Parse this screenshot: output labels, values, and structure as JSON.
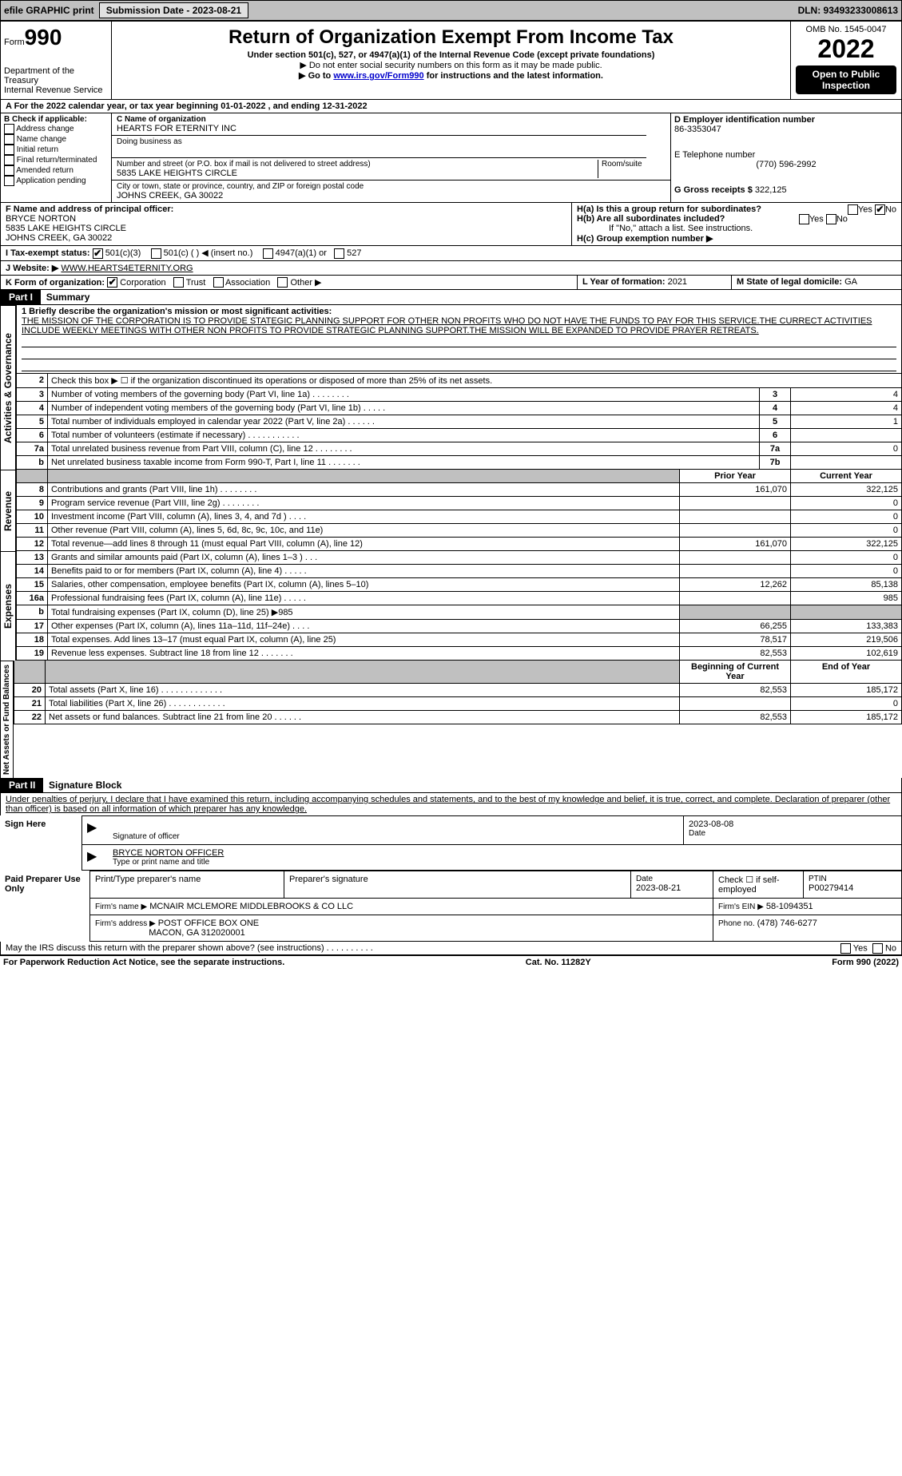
{
  "topbar": {
    "efile": "efile GRAPHIC print",
    "submission_label": "Submission Date - 2023-08-21",
    "dln_label": "DLN: 93493233008613"
  },
  "header": {
    "form_prefix": "Form",
    "form_number": "990",
    "dept": "Department of the Treasury",
    "irs": "Internal Revenue Service",
    "title": "Return of Organization Exempt From Income Tax",
    "sub1": "Under section 501(c), 527, or 4947(a)(1) of the Internal Revenue Code (except private foundations)",
    "sub2": "▶ Do not enter social security numbers on this form as it may be made public.",
    "sub3_pre": "▶ Go to ",
    "sub3_link": "www.irs.gov/Form990",
    "sub3_post": " for instructions and the latest information.",
    "omb": "OMB No. 1545-0047",
    "year": "2022",
    "inspect": "Open to Public Inspection"
  },
  "line_a": "A For the 2022 calendar year, or tax year beginning 01-01-2022    , and ending 12-31-2022",
  "section_b": {
    "label": "B Check if applicable:",
    "items": [
      "Address change",
      "Name change",
      "Initial return",
      "Final return/terminated",
      "Amended return",
      "Application pending"
    ]
  },
  "section_c": {
    "name_label": "C Name of organization",
    "name": "HEARTS FOR ETERNITY INC",
    "dba_label": "Doing business as",
    "addr_label": "Number and street (or P.O. box if mail is not delivered to street address)",
    "room_label": "Room/suite",
    "addr": "5835 LAKE HEIGHTS CIRCLE",
    "city_label": "City or town, state or province, country, and ZIP or foreign postal code",
    "city": "JOHNS CREEK, GA  30022"
  },
  "section_d": {
    "label": "D Employer identification number",
    "value": "86-3353047"
  },
  "section_e": {
    "label": "E Telephone number",
    "value": "(770) 596-2992"
  },
  "section_g": {
    "label": "G Gross receipts $",
    "value": "322,125"
  },
  "section_f": {
    "label": "F Name and address of principal officer:",
    "name": "BRYCE NORTON",
    "addr1": "5835 LAKE HEIGHTS CIRCLE",
    "addr2": "JOHNS CREEK, GA  30022"
  },
  "section_h": {
    "ha": "H(a)  Is this a group return for subordinates?",
    "hb": "H(b)  Are all subordinates included?",
    "hb_note": "If \"No,\" attach a list. See instructions.",
    "hc": "H(c)  Group exemption number ▶",
    "yes": "Yes",
    "no": "No"
  },
  "section_i": {
    "label": "I  Tax-exempt status:",
    "opts": [
      "501(c)(3)",
      "501(c) (   ) ◀ (insert no.)",
      "4947(a)(1) or",
      "527"
    ]
  },
  "section_j": {
    "label": "J  Website: ▶",
    "value": "WWW.HEARTS4ETERNITY.ORG"
  },
  "section_k": {
    "label": "K Form of organization:",
    "opts": [
      "Corporation",
      "Trust",
      "Association",
      "Other ▶"
    ]
  },
  "section_l": {
    "label": "L Year of formation:",
    "value": "2021"
  },
  "section_m": {
    "label": "M State of legal domicile:",
    "value": "GA"
  },
  "part1": {
    "tag": "Part I",
    "title": "Summary"
  },
  "mission": {
    "label": "1  Briefly describe the organization's mission or most significant activities:",
    "text": "THE MISSION OF THE CORPORATION IS TO PROVIDE STATEGIC PLANNING SUPPORT FOR OTHER NON PROFITS WHO DO NOT HAVE THE FUNDS TO PAY FOR THIS SERVICE.THE CURRECT ACTIVITIES INCLUDE WEEKLY MEETINGS WITH OTHER NON PROFITS TO PROVIDE STRATEGIC PLANNING SUPPORT.THE MISSION WILL BE EXPANDED TO PROVIDE PRAYER RETREATS."
  },
  "governance_rows": [
    {
      "n": "2",
      "text": "Check this box ▶ ☐ if the organization discontinued its operations or disposed of more than 25% of its net assets.",
      "ref": "",
      "val": ""
    },
    {
      "n": "3",
      "text": "Number of voting members of the governing body (Part VI, line 1a)   .    .    .    .    .    .    .    .",
      "ref": "3",
      "val": "4"
    },
    {
      "n": "4",
      "text": "Number of independent voting members of the governing body (Part VI, line 1b)   .    .    .    .    .",
      "ref": "4",
      "val": "4"
    },
    {
      "n": "5",
      "text": "Total number of individuals employed in calendar year 2022 (Part V, line 2a)   .    .    .    .    .    .",
      "ref": "5",
      "val": "1"
    },
    {
      "n": "6",
      "text": "Total number of volunteers (estimate if necessary)   .    .    .    .    .    .    .    .    .    .    .",
      "ref": "6",
      "val": ""
    },
    {
      "n": "7a",
      "text": "Total unrelated business revenue from Part VIII, column (C), line 12   .    .    .    .    .    .    .    .",
      "ref": "7a",
      "val": "0"
    },
    {
      "n": "b",
      "text": "Net unrelated business taxable income from Form 990-T, Part I, line 11   .    .    .    .    .    .    .",
      "ref": "7b",
      "val": ""
    }
  ],
  "columns": {
    "prior": "Prior Year",
    "current": "Current Year",
    "begin": "Beginning of Current Year",
    "end": "End of Year"
  },
  "revenue_rows": [
    {
      "n": "8",
      "text": "Contributions and grants (Part VIII, line 1h)   .    .    .    .    .    .    .    .",
      "p": "161,070",
      "c": "322,125"
    },
    {
      "n": "9",
      "text": "Program service revenue (Part VIII, line 2g)   .    .    .    .    .    .    .    .",
      "p": "",
      "c": "0"
    },
    {
      "n": "10",
      "text": "Investment income (Part VIII, column (A), lines 3, 4, and 7d )   .    .    .    .",
      "p": "",
      "c": "0"
    },
    {
      "n": "11",
      "text": "Other revenue (Part VIII, column (A), lines 5, 6d, 8c, 9c, 10c, and 11e)",
      "p": "",
      "c": "0"
    },
    {
      "n": "12",
      "text": "Total revenue—add lines 8 through 11 (must equal Part VIII, column (A), line 12)",
      "p": "161,070",
      "c": "322,125"
    }
  ],
  "expense_rows": [
    {
      "n": "13",
      "text": "Grants and similar amounts paid (Part IX, column (A), lines 1–3 )   .    .    .",
      "p": "",
      "c": "0"
    },
    {
      "n": "14",
      "text": "Benefits paid to or for members (Part IX, column (A), line 4)   .    .    .    .    .",
      "p": "",
      "c": "0"
    },
    {
      "n": "15",
      "text": "Salaries, other compensation, employee benefits (Part IX, column (A), lines 5–10)",
      "p": "12,262",
      "c": "85,138"
    },
    {
      "n": "16a",
      "text": "Professional fundraising fees (Part IX, column (A), line 11e)   .    .    .    .    .",
      "p": "",
      "c": "985"
    },
    {
      "n": "b",
      "text": "Total fundraising expenses (Part IX, column (D), line 25) ▶985",
      "p": "shaded",
      "c": "shaded"
    },
    {
      "n": "17",
      "text": "Other expenses (Part IX, column (A), lines 11a–11d, 11f–24e)   .    .    .    .",
      "p": "66,255",
      "c": "133,383"
    },
    {
      "n": "18",
      "text": "Total expenses. Add lines 13–17 (must equal Part IX, column (A), line 25)",
      "p": "78,517",
      "c": "219,506"
    },
    {
      "n": "19",
      "text": "Revenue less expenses. Subtract line 18 from line 12   .    .    .    .    .    .    .",
      "p": "82,553",
      "c": "102,619"
    }
  ],
  "netassets_rows": [
    {
      "n": "20",
      "text": "Total assets (Part X, line 16)   .    .    .    .    .    .    .    .    .    .    .    .    .",
      "p": "82,553",
      "c": "185,172"
    },
    {
      "n": "21",
      "text": "Total liabilities (Part X, line 26)   .    .    .    .    .    .    .    .    .    .    .    .",
      "p": "",
      "c": "0"
    },
    {
      "n": "22",
      "text": "Net assets or fund balances. Subtract line 21 from line 20   .    .    .    .    .    .",
      "p": "82,553",
      "c": "185,172"
    }
  ],
  "side_labels": {
    "gov": "Activities & Governance",
    "rev": "Revenue",
    "exp": "Expenses",
    "net": "Net Assets or Fund Balances"
  },
  "part2": {
    "tag": "Part II",
    "title": "Signature Block"
  },
  "perjury": "Under penalties of perjury, I declare that I have examined this return, including accompanying schedules and statements, and to the best of my knowledge and belief, it is true, correct, and complete. Declaration of preparer (other than officer) is based on all information of which preparer has any knowledge.",
  "sign": {
    "here": "Sign Here",
    "sig_officer": "Signature of officer",
    "date_label": "Date",
    "date": "2023-08-08",
    "name": "BRYCE NORTON  OFFICER",
    "name_label": "Type or print name and title"
  },
  "paid": {
    "label": "Paid Preparer Use Only",
    "h1": "Print/Type preparer's name",
    "h2": "Preparer's signature",
    "h3": "Date",
    "date": "2023-08-21",
    "h4": "Check ☐ if self-employed",
    "h5": "PTIN",
    "ptin": "P00279414",
    "firm_name_label": "Firm's name    ▶",
    "firm_name": "MCNAIR MCLEMORE MIDDLEBROOKS & CO LLC",
    "firm_ein_label": "Firm's EIN ▶",
    "firm_ein": "58-1094351",
    "firm_addr_label": "Firm's address ▶",
    "firm_addr1": "POST OFFICE BOX ONE",
    "firm_addr2": "MACON, GA  312020001",
    "phone_label": "Phone no.",
    "phone": "(478) 746-6277"
  },
  "discuss": "May the IRS discuss this return with the preparer shown above? (see instructions)   .    .    .    .    .    .    .    .    .    .",
  "footer": {
    "left": "For Paperwork Reduction Act Notice, see the separate instructions.",
    "mid": "Cat. No. 11282Y",
    "right_pre": "Form ",
    "right_bold": "990",
    "right_post": " (2022)"
  }
}
